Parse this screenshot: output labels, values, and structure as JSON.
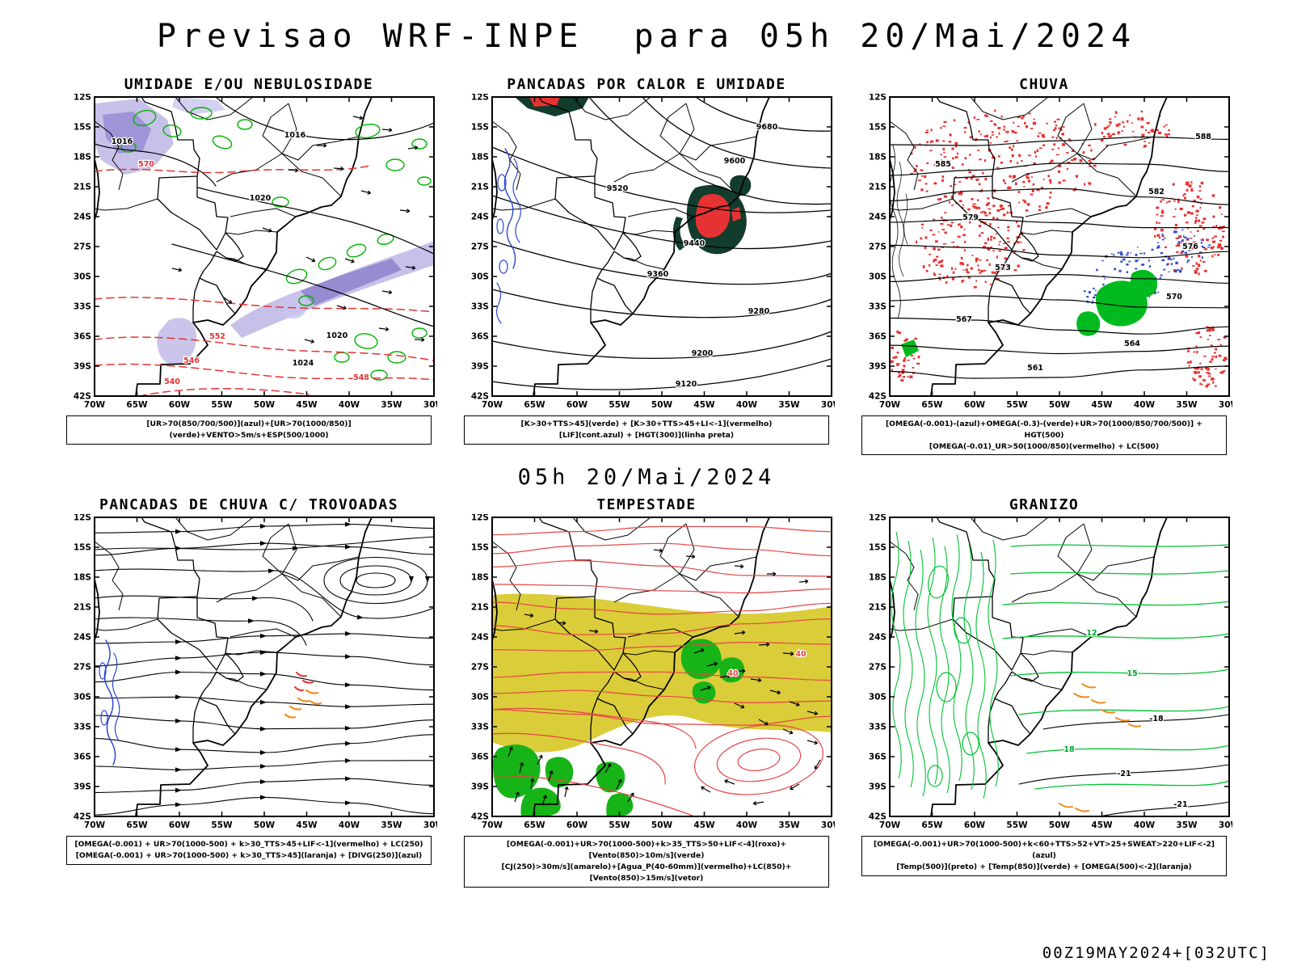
{
  "header": {
    "title": "Previsao WRF-INPE  para 05h 20/Mai/2024"
  },
  "mid_label": "05h 20/Mai/2024",
  "footer": "00Z19MAY2024+[032UTC]",
  "axes": {
    "lat_ticks": [
      "12S",
      "15S",
      "18S",
      "21S",
      "24S",
      "27S",
      "30S",
      "33S",
      "36S",
      "39S",
      "42S"
    ],
    "lon_ticks": [
      "70W",
      "65W",
      "60W",
      "55W",
      "50W",
      "45W",
      "40W",
      "35W",
      "30W"
    ]
  },
  "colors": {
    "green": "#00b400",
    "red": "#e63232",
    "blue": "#2b47d0",
    "purple": "#b9b2e4",
    "dark_green": "#123c2c",
    "yellow": "#d8ca2e",
    "orange": "#ef8c1e",
    "black": "#000000"
  },
  "panels": [
    {
      "id": "umidade",
      "title": "UMIDADE E/OU NEBULOSIDADE",
      "caption": [
        "[UR>70(850/700/500)](azul)+[UR>70(1000/850)](verde)+VENTO>5m/s+ESP(500/1000)"
      ],
      "contour_labels": [
        "1016",
        "1016",
        "1020",
        "1020",
        "1024",
        "570",
        "552",
        "546",
        "540",
        "548"
      ]
    },
    {
      "id": "pancadas-calor",
      "title": "PANCADAS POR CALOR E UMIDADE",
      "caption": [
        "[K>30+TTS>45](verde) + [K>30+TTS>45+LI<-1](vermelho)",
        "[LIF](cont.azul) + [HGT(300)](linha preta)"
      ],
      "contour_labels": [
        "9680",
        "9600",
        "9520",
        "9440",
        "9360",
        "9280",
        "9200",
        "9120"
      ]
    },
    {
      "id": "chuva",
      "title": "CHUVA",
      "caption": [
        "[OMEGA(-0.001)-(azul)+OMEGA(-0.3)-(verde)+UR>70(1000/850/700/500)] + HGT(500)",
        "[OMEGA(-0.01)_UR>50(1000/850)(vermelho) + LC(500)"
      ],
      "contour_labels": [
        "588",
        "585",
        "582",
        "579",
        "576",
        "573",
        "570",
        "567",
        "564",
        "561"
      ]
    },
    {
      "id": "trovoadas",
      "title": "PANCADAS DE CHUVA C/ TROVOADAS",
      "caption": [
        "[OMEGA(-0.001) + UR>70(1000-500) + k>30_TTS>45+LIF<-1](vermelho) + LC(250)",
        "[OMEGA(-0.001) + UR>70(1000-500) + k>30_TTS>45](laranja) + [DIVG(250)](azul)"
      ],
      "contour_labels": []
    },
    {
      "id": "tempestade",
      "title": "TEMPESTADE",
      "caption": [
        "[OMEGA(-0.001)+UR>70(1000-500)+k>35_TTS>50+LIF<-4](roxo)+[Vento(850)>10m/s](verde)",
        "[CJ(250)>30m/s](amarelo)+[Agua_P(40-60mm)](vermelho)+LC(850)+[Vento(850)>15m/s](vetor)"
      ],
      "contour_labels": [
        "40",
        "40"
      ]
    },
    {
      "id": "granizo",
      "title": "GRANIZO",
      "caption": [
        "[OMEGA(-0.001)+UR>70(1000-500)+k<60+TTS>52+VT>25+SWEAT>220+LIF<-2](azul)",
        "[Temp(500)](preto) + [Temp(850)](verde) + [OMEGA(500)<-2](laranja)"
      ],
      "contour_labels": [
        "12",
        "15",
        "18",
        "-18",
        "-21"
      ]
    }
  ]
}
